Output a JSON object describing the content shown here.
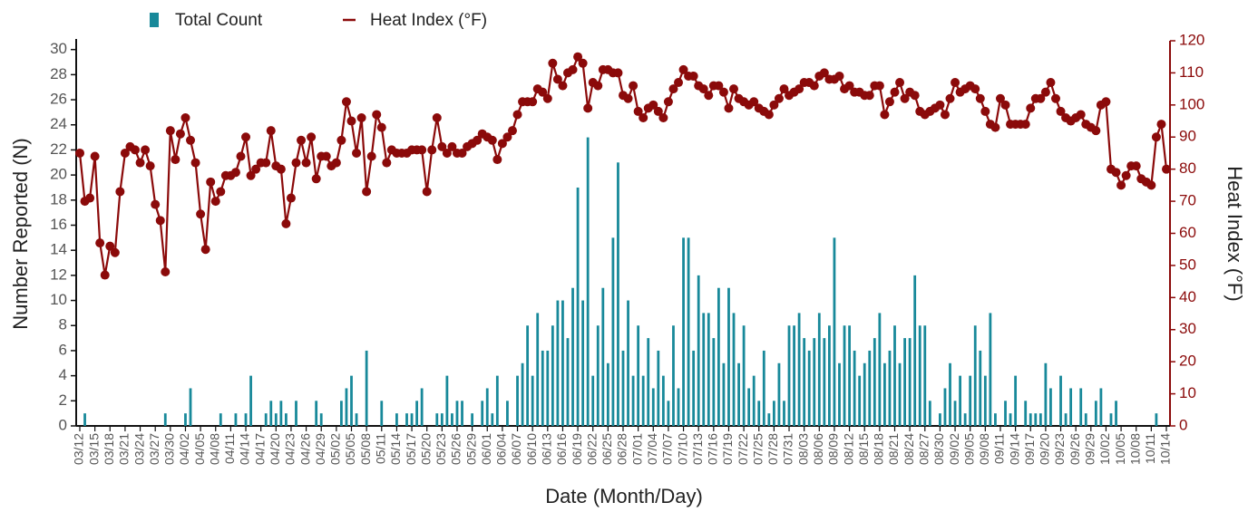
{
  "chart_data": {
    "type": "combo",
    "x_label": "Date (Month/Day)",
    "y_label": "Number Reported (N)",
    "y2_label": "Heat Index (°F)",
    "legend": "top",
    "categories": [
      "03/12",
      null,
      null,
      "03/15",
      null,
      null,
      "03/18",
      null,
      null,
      "03/21",
      null,
      null,
      "03/24",
      null,
      null,
      "03/27",
      null,
      null,
      "03/30",
      null,
      null,
      "04/02",
      null,
      null,
      "04/05",
      null,
      null,
      "04/08",
      null,
      null,
      "04/11",
      null,
      null,
      "04/14",
      null,
      null,
      "04/17",
      null,
      null,
      "04/20",
      null,
      null,
      "04/23",
      null,
      null,
      "04/26",
      null,
      null,
      "04/29",
      null,
      null,
      "05/02",
      null,
      null,
      "05/05",
      null,
      null,
      "05/08",
      null,
      null,
      "05/11",
      null,
      null,
      "05/14",
      null,
      null,
      "05/17",
      null,
      null,
      "05/20",
      null,
      null,
      "05/23",
      null,
      null,
      "05/26",
      null,
      null,
      "05/29",
      null,
      null,
      "06/01",
      null,
      null,
      "06/04",
      null,
      null,
      "06/07",
      null,
      null,
      "06/10",
      null,
      null,
      "06/13",
      null,
      null,
      "06/16",
      null,
      null,
      "06/19",
      null,
      null,
      "06/22",
      null,
      null,
      "06/25",
      null,
      null,
      "06/28",
      null,
      null,
      "07/01",
      null,
      null,
      "07/04",
      null,
      null,
      "07/07",
      null,
      null,
      "07/10",
      null,
      null,
      "07/13",
      null,
      null,
      "07/16",
      null,
      null,
      "07/19",
      null,
      null,
      "07/22",
      null,
      null,
      "07/25",
      null,
      null,
      "07/28",
      null,
      null,
      "07/31",
      null,
      null,
      "08/03",
      null,
      null,
      "08/06",
      null,
      null,
      "08/09",
      null,
      null,
      "08/12",
      null,
      null,
      "08/15",
      null,
      null,
      "08/18",
      null,
      null,
      "08/21",
      null,
      null,
      "08/24",
      null,
      null,
      "08/27",
      null,
      null,
      "08/30",
      null,
      null,
      "09/02",
      null,
      null,
      "09/05",
      null,
      null,
      "09/08",
      null,
      null,
      "09/11",
      null,
      null,
      "09/14",
      null,
      null,
      "09/17",
      null,
      null,
      "09/20",
      null,
      null,
      "09/23",
      null,
      null,
      "09/26",
      null,
      null,
      "09/29",
      null,
      null,
      "10/02",
      null,
      null,
      "10/05",
      null,
      null,
      "10/08",
      null,
      null,
      "10/11",
      null,
      null,
      "10/14"
    ],
    "series": [
      {
        "name": "Total Count",
        "type": "bar",
        "color": "#18899a",
        "values": [
          0,
          1,
          0,
          0,
          0,
          0,
          0,
          0,
          0,
          0,
          0,
          0,
          0,
          0,
          0,
          0,
          0,
          1,
          0,
          0,
          0,
          1,
          3,
          0,
          0,
          0,
          0,
          0,
          1,
          0,
          0,
          1,
          0,
          1,
          4,
          0,
          0,
          1,
          2,
          1,
          2,
          1,
          0,
          2,
          0,
          0,
          0,
          2,
          1,
          0,
          0,
          0,
          2,
          3,
          4,
          1,
          0,
          6,
          0,
          0,
          2,
          0,
          0,
          1,
          0,
          1,
          1,
          2,
          3,
          0,
          0,
          1,
          1,
          4,
          1,
          2,
          2,
          0,
          1,
          0,
          2,
          3,
          1,
          4,
          0,
          2,
          0,
          4,
          5,
          8,
          4,
          9,
          6,
          6,
          8,
          10,
          10,
          7,
          11,
          19,
          10,
          23,
          4,
          8,
          11,
          5,
          15,
          21,
          6,
          10,
          4,
          8,
          4,
          7,
          3,
          6,
          4,
          2,
          8,
          3,
          15,
          15,
          6,
          12,
          9,
          9,
          7,
          11,
          5,
          11,
          9,
          5,
          8,
          3,
          4,
          2,
          6,
          1,
          2,
          5,
          2,
          8,
          8,
          9,
          7,
          6,
          7,
          9,
          7,
          8,
          15,
          5,
          8,
          8,
          6,
          4,
          5,
          6,
          7,
          9,
          5,
          6,
          8,
          5,
          7,
          7,
          12,
          8,
          8,
          2,
          0,
          1,
          3,
          5,
          2,
          4,
          1,
          4,
          8,
          6,
          4,
          9,
          1,
          0,
          2,
          1,
          4,
          0,
          2,
          1,
          1,
          1,
          5,
          3,
          0,
          4,
          1,
          3,
          0,
          3,
          1,
          0,
          2,
          3,
          0,
          1,
          2,
          0,
          0,
          0,
          0,
          0,
          0,
          0,
          1,
          0,
          0
        ]
      },
      {
        "name": "Heat Index (°F)",
        "type": "line",
        "axis": "y2",
        "color": "#8b0a0a",
        "values": [
          85,
          70,
          71,
          84,
          57,
          47,
          56,
          54,
          73,
          85,
          87,
          86,
          82,
          86,
          81,
          69,
          64,
          48,
          92,
          83,
          91,
          96,
          89,
          82,
          66,
          55,
          76,
          70,
          73,
          78,
          78,
          79,
          84,
          90,
          78,
          80,
          82,
          82,
          92,
          81,
          80,
          63,
          71,
          82,
          89,
          82,
          90,
          77,
          84,
          84,
          81,
          82,
          89,
          101,
          95,
          85,
          96,
          73,
          84,
          97,
          93,
          82,
          86,
          85,
          85,
          85,
          86,
          86,
          86,
          73,
          86,
          96,
          87,
          85,
          87,
          85,
          85,
          87,
          88,
          89,
          91,
          90,
          89,
          83,
          88,
          90,
          92,
          97,
          101,
          101,
          101,
          105,
          104,
          102,
          113,
          108,
          106,
          110,
          111,
          115,
          113,
          99,
          107,
          106,
          111,
          111,
          110,
          110,
          103,
          102,
          106,
          98,
          96,
          99,
          100,
          98,
          96,
          101,
          105,
          107,
          111,
          109,
          109,
          106,
          105,
          103,
          106,
          106,
          104,
          99,
          105,
          102,
          101,
          100,
          101,
          99,
          98,
          97,
          100,
          102,
          105,
          103,
          104,
          105,
          107,
          107,
          106,
          109,
          110,
          108,
          108,
          109,
          105,
          106,
          104,
          104,
          103,
          103,
          106,
          106,
          97,
          101,
          104,
          107,
          102,
          104,
          103,
          98,
          97,
          98,
          99,
          100,
          97,
          102,
          107,
          104,
          105,
          106,
          105,
          102,
          98,
          94,
          93,
          102,
          100,
          94,
          94,
          94,
          94,
          99,
          102,
          102,
          104,
          107,
          102,
          98,
          96,
          95,
          96,
          97,
          94,
          93,
          92,
          100,
          101,
          80,
          79,
          75,
          78,
          81,
          81,
          77,
          76,
          75,
          90,
          94,
          80
        ]
      }
    ],
    "ylim": [
      0,
      30.7
    ],
    "yticks": [
      0,
      2,
      4,
      6,
      8,
      10,
      12,
      14,
      16,
      18,
      20,
      22,
      24,
      26,
      28,
      30
    ],
    "y2lim": [
      0,
      120
    ],
    "y2ticks": [
      0,
      10,
      20,
      30,
      40,
      50,
      60,
      70,
      80,
      90,
      100,
      110,
      120
    ]
  }
}
